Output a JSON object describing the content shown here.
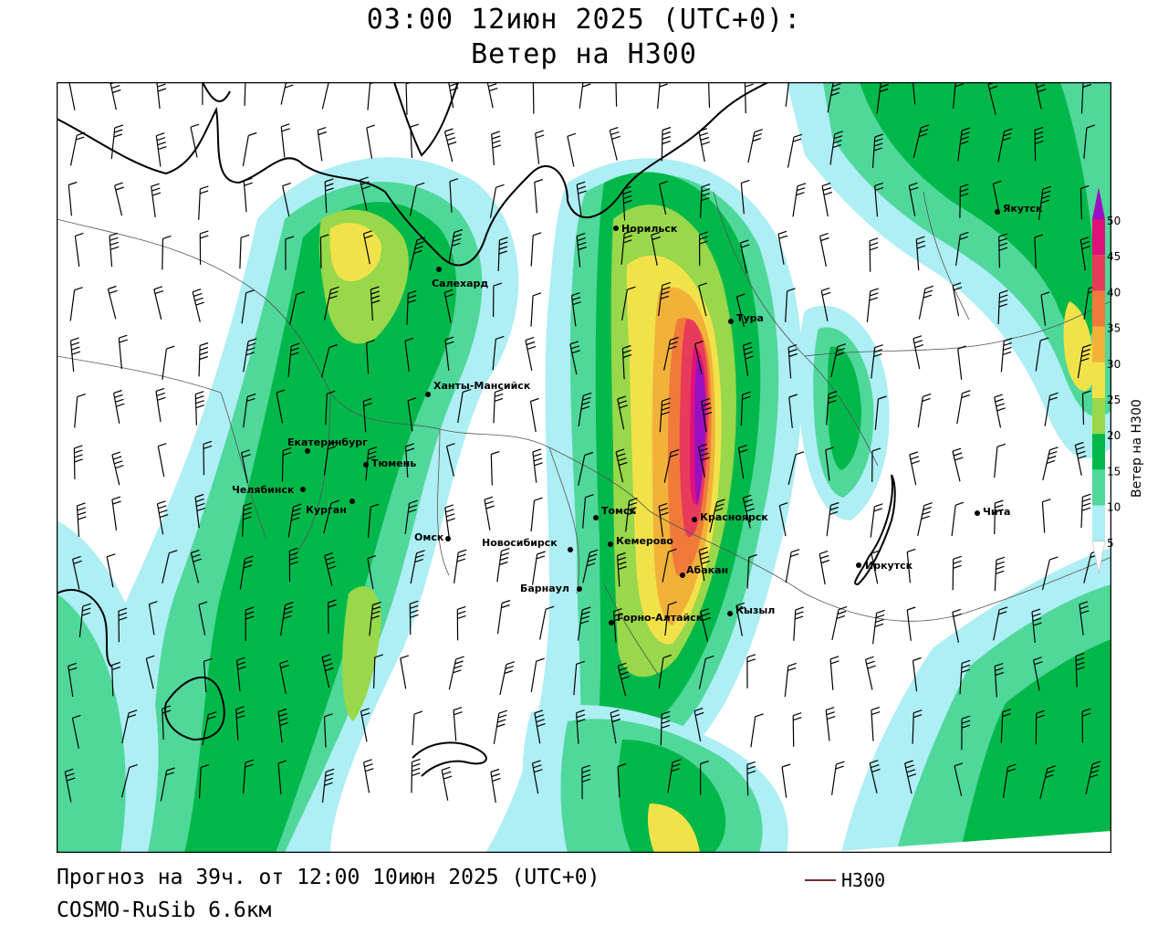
{
  "header": {
    "title_line1": "03:00 12июн 2025 (UTC+0):",
    "title_line2": "Ветер на H300"
  },
  "footer": {
    "forecast": "Прогноз на 39ч. от 12:00 10июн 2025 (UTC+0)",
    "model": "COSMO-RuSib 6.6км",
    "contour_legend": "H300",
    "contour_color": "#7a2a2a"
  },
  "colorbar": {
    "title": "Ветер на H300",
    "levels": [
      5,
      10,
      15,
      20,
      25,
      30,
      35,
      40,
      45,
      50
    ],
    "colors": [
      "#ffffff",
      "#aeeef5",
      "#4fd89a",
      "#00b84a",
      "#98d84a",
      "#f2e24a",
      "#f2b23a",
      "#f07a3a",
      "#e83a5a",
      "#e0107a",
      "#9a10c0"
    ]
  },
  "cities": [
    {
      "name": "Салехард"
    },
    {
      "name": "Норильск"
    },
    {
      "name": "Тура"
    },
    {
      "name": "Якутск"
    },
    {
      "name": "Ханты-Мансийск"
    },
    {
      "name": "Екатеринбург"
    },
    {
      "name": "Тюмень"
    },
    {
      "name": "Челябинск"
    },
    {
      "name": "Курган"
    },
    {
      "name": "Омск"
    },
    {
      "name": "Новосибирск"
    },
    {
      "name": "Томск"
    },
    {
      "name": "Кемерово"
    },
    {
      "name": "Красноярск"
    },
    {
      "name": "Барнаул"
    },
    {
      "name": "Абакан"
    },
    {
      "name": "Горно-Алтайск"
    },
    {
      "name": "Кызыл"
    },
    {
      "name": "Иркутск"
    },
    {
      "name": "Чита"
    }
  ]
}
